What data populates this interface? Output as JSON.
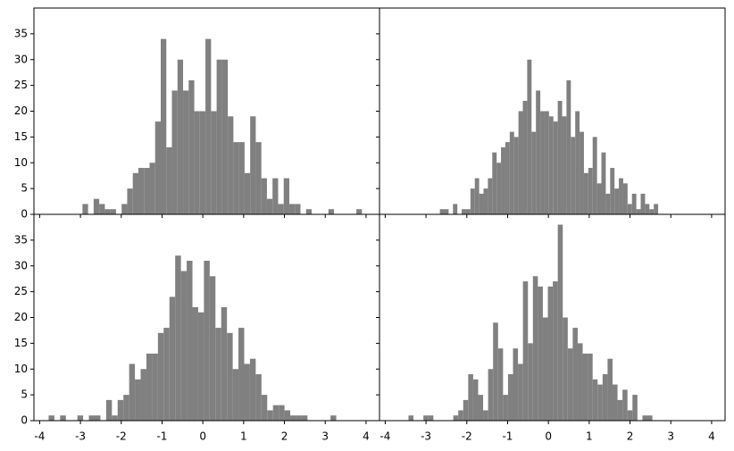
{
  "chart_data": [
    {
      "type": "histogram",
      "color": "#808080",
      "xlim": [
        -4.14,
        4.33
      ],
      "ylim": [
        0,
        40
      ],
      "xticks": [
        -4,
        -3,
        -2,
        -1,
        0,
        1,
        2,
        3,
        4
      ],
      "yticks": [
        0,
        5,
        10,
        15,
        20,
        25,
        30,
        35
      ],
      "bins": [
        -2.95,
        -2.813,
        -2.676,
        -2.539,
        -2.402,
        -2.265,
        -2.128,
        -1.991,
        -1.854,
        -1.717,
        -1.58,
        -1.443,
        -1.306,
        -1.169,
        -1.032,
        -0.895,
        -0.758,
        -0.621,
        -0.484,
        -0.347,
        -0.21,
        -0.073,
        0.064,
        0.201,
        0.338,
        0.475,
        0.612,
        0.749,
        0.886,
        1.023,
        1.16,
        1.297,
        1.434,
        1.571,
        1.708,
        1.845,
        1.982,
        2.119,
        2.256,
        2.393,
        2.53,
        2.667,
        2.804,
        2.941,
        3.078,
        3.215,
        3.352,
        3.489,
        3.626,
        3.763,
        3.9
      ],
      "values": [
        2,
        0,
        3,
        2,
        1,
        1,
        0,
        2,
        5,
        8,
        9,
        9,
        10,
        18,
        34,
        13,
        24,
        30,
        24,
        26,
        20,
        20,
        34,
        20,
        30,
        30,
        19,
        14,
        14,
        8,
        19,
        14,
        7,
        3,
        7,
        2,
        7,
        2,
        2,
        0,
        1,
        0,
        0,
        0,
        1,
        0,
        0,
        0,
        0,
        1
      ]
    },
    {
      "type": "histogram",
      "color": "#808080",
      "xlim": [
        -4.14,
        4.33
      ],
      "ylim": [
        0,
        40
      ],
      "xticks": [
        -4,
        -3,
        -2,
        -1,
        0,
        1,
        2,
        3,
        4
      ],
      "yticks": [
        0,
        5,
        10,
        15,
        20,
        25,
        30,
        35
      ],
      "bins": [
        -2.66,
        -2.553,
        -2.446,
        -2.339,
        -2.232,
        -2.125,
        -2.018,
        -1.911,
        -1.804,
        -1.697,
        -1.59,
        -1.483,
        -1.376,
        -1.269,
        -1.162,
        -1.055,
        -0.948,
        -0.841,
        -0.734,
        -0.627,
        -0.52,
        -0.413,
        -0.306,
        -0.199,
        -0.092,
        0.015,
        0.122,
        0.229,
        0.336,
        0.443,
        0.55,
        0.657,
        0.764,
        0.871,
        0.978,
        1.085,
        1.192,
        1.299,
        1.406,
        1.513,
        1.62,
        1.727,
        1.834,
        1.941,
        2.048,
        2.155,
        2.262,
        2.369,
        2.476,
        2.583,
        2.69
      ],
      "values": [
        1,
        1,
        0,
        2,
        0,
        1,
        1,
        5,
        7,
        4,
        5,
        7,
        12,
        10,
        13,
        14,
        16,
        15,
        20,
        22,
        30,
        16,
        24,
        20,
        20,
        19,
        18,
        22,
        19,
        26,
        15,
        20,
        16,
        8,
        9,
        15,
        6,
        12,
        4,
        9,
        5,
        7,
        6,
        2,
        4,
        1,
        4,
        2,
        1,
        2
      ]
    },
    {
      "type": "histogram",
      "color": "#808080",
      "xlim": [
        -4.14,
        4.33
      ],
      "ylim": [
        0,
        40
      ],
      "xticks": [
        -4,
        -3,
        -2,
        -1,
        0,
        1,
        2,
        3,
        4
      ],
      "yticks": [
        0,
        5,
        10,
        15,
        20,
        25,
        30,
        35
      ],
      "bins": [
        -3.78,
        -3.639,
        -3.498,
        -3.357,
        -3.216,
        -3.075,
        -2.934,
        -2.793,
        -2.652,
        -2.511,
        -2.37,
        -2.229,
        -2.088,
        -1.947,
        -1.806,
        -1.665,
        -1.524,
        -1.383,
        -1.242,
        -1.101,
        -0.96,
        -0.819,
        -0.678,
        -0.537,
        -0.396,
        -0.255,
        -0.114,
        0.027,
        0.168,
        0.309,
        0.45,
        0.591,
        0.732,
        0.873,
        1.014,
        1.155,
        1.296,
        1.437,
        1.578,
        1.719,
        1.86,
        2.001,
        2.142,
        2.283,
        2.424,
        2.565,
        2.706,
        2.847,
        2.988,
        3.129,
        3.27
      ],
      "values": [
        1,
        0,
        1,
        0,
        0,
        1,
        0,
        1,
        1,
        0,
        4,
        1,
        4,
        5,
        11,
        8,
        10,
        13,
        13,
        17,
        18,
        24,
        32,
        29,
        31,
        22,
        21,
        31,
        28,
        18,
        22,
        17,
        10,
        18,
        11,
        12,
        9,
        5,
        2,
        3,
        3,
        2,
        1,
        1,
        1,
        0,
        0,
        0,
        0,
        1
      ]
    },
    {
      "type": "histogram",
      "color": "#808080",
      "xlim": [
        -4.14,
        4.33
      ],
      "ylim": [
        0,
        40
      ],
      "xticks": [
        -4,
        -3,
        -2,
        -1,
        0,
        1,
        2,
        3,
        4
      ],
      "yticks": [
        0,
        5,
        10,
        15,
        20,
        25,
        30,
        35
      ],
      "bins": [
        -3.43,
        -3.308,
        -3.186,
        -3.064,
        -2.942,
        -2.82,
        -2.698,
        -2.576,
        -2.454,
        -2.332,
        -2.21,
        -2.088,
        -1.966,
        -1.844,
        -1.722,
        -1.6,
        -1.478,
        -1.356,
        -1.234,
        -1.112,
        -0.99,
        -0.868,
        -0.746,
        -0.624,
        -0.502,
        -0.38,
        -0.258,
        -0.136,
        -0.014,
        0.108,
        0.23,
        0.352,
        0.474,
        0.596,
        0.718,
        0.84,
        0.962,
        1.084,
        1.206,
        1.328,
        1.45,
        1.572,
        1.694,
        1.816,
        1.938,
        2.06,
        2.182,
        2.304,
        2.426,
        2.548,
        2.67
      ],
      "values": [
        1,
        0,
        0,
        1,
        1,
        0,
        0,
        0,
        0,
        1,
        2,
        4,
        9,
        8,
        5,
        2,
        10,
        19,
        14,
        5,
        9,
        14,
        11,
        27,
        15,
        28,
        26,
        20,
        26,
        27,
        38,
        20,
        14,
        18,
        15,
        13,
        13,
        8,
        7,
        9,
        12,
        7,
        4,
        6,
        2,
        5,
        0,
        1,
        1,
        0
      ]
    }
  ]
}
